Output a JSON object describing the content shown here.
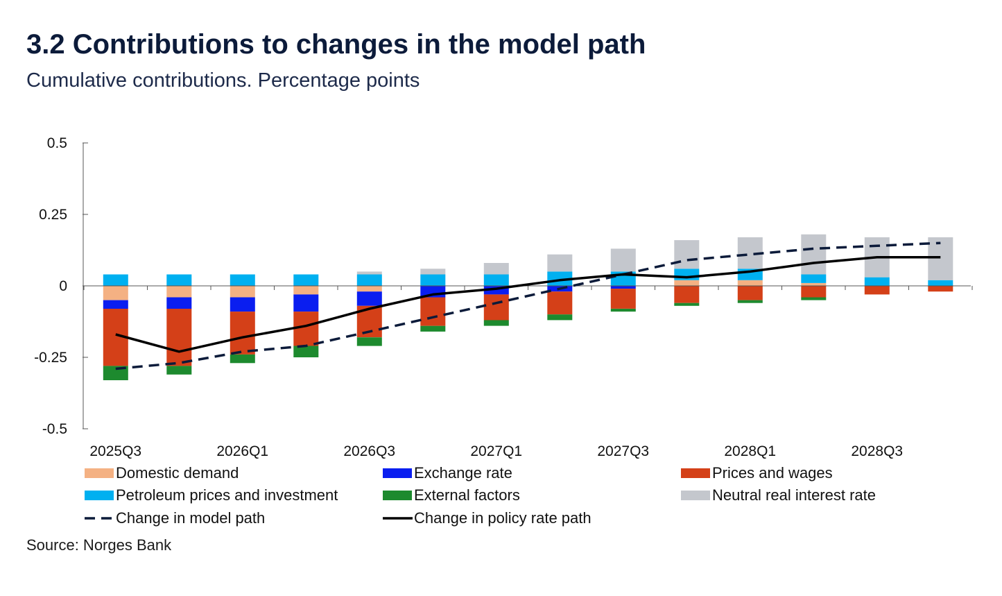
{
  "header": {
    "title": "3.2 Contributions to changes in the model path",
    "subtitle": "Cumulative contributions. Percentage points"
  },
  "footer": {
    "source": "Source: Norges Bank"
  },
  "colors": {
    "domestic_demand": "#f4b183",
    "exchange_rate": "#0a1ef0",
    "prices_and_wages": "#d44018",
    "petroleum": "#00b0f0",
    "external_factors": "#1d8a2e",
    "neutral_rate": "#c4c7cd",
    "model_path": "#0c1b3a",
    "policy_path": "#000000"
  },
  "legend": [
    {
      "label": "Domestic demand",
      "key": "domestic_demand",
      "kind": "bar"
    },
    {
      "label": "Exchange rate",
      "key": "exchange_rate",
      "kind": "bar"
    },
    {
      "label": "Prices and wages",
      "key": "prices_and_wages",
      "kind": "bar"
    },
    {
      "label": "Petroleum prices and investment",
      "key": "petroleum",
      "kind": "bar"
    },
    {
      "label": "External factors",
      "key": "external_factors",
      "kind": "bar"
    },
    {
      "label": "Neutral real interest rate",
      "key": "neutral_rate",
      "kind": "bar"
    },
    {
      "label": "Change in model path",
      "key": "model_path",
      "kind": "dashed"
    },
    {
      "label": "Change in policy rate path",
      "key": "policy_path",
      "kind": "solid"
    }
  ],
  "chart_data": {
    "type": "bar",
    "stacked": true,
    "title": "3.2 Contributions to changes in the model path",
    "subtitle": "Cumulative contributions. Percentage points",
    "categories": [
      "2025Q3",
      "2025Q4",
      "2026Q1",
      "2026Q2",
      "2026Q3",
      "2026Q4",
      "2027Q1",
      "2027Q2",
      "2027Q3",
      "2027Q4",
      "2028Q1",
      "2028Q2",
      "2028Q3",
      "2028Q4"
    ],
    "x_tick_labels": [
      "2025Q3",
      "2026Q1",
      "2026Q3",
      "2027Q1",
      "2027Q3",
      "2028Q1",
      "2028Q3"
    ],
    "ylim": [
      -0.5,
      0.5
    ],
    "y_ticks": [
      0.5,
      0.25,
      0,
      -0.25,
      -0.5
    ],
    "y_tick_labels": [
      "0.5",
      "0.25",
      "0",
      "-0.25",
      "-0.5"
    ],
    "xlabel": "",
    "ylabel": "",
    "series": [
      {
        "name": "Domestic demand",
        "key": "domestic_demand",
        "values": [
          -0.05,
          -0.04,
          -0.04,
          -0.03,
          -0.02,
          0,
          0,
          0,
          0,
          0.02,
          0.02,
          0.01,
          0,
          0
        ]
      },
      {
        "name": "Exchange rate",
        "key": "exchange_rate",
        "values": [
          -0.03,
          -0.04,
          -0.05,
          -0.06,
          -0.05,
          -0.04,
          -0.03,
          -0.02,
          -0.01,
          0,
          0,
          0,
          0,
          0
        ]
      },
      {
        "name": "Prices and wages",
        "key": "prices_and_wages",
        "values": [
          -0.2,
          -0.2,
          -0.15,
          -0.12,
          -0.11,
          -0.1,
          -0.09,
          -0.08,
          -0.07,
          -0.06,
          -0.05,
          -0.04,
          -0.03,
          -0.02
        ]
      },
      {
        "name": "Petroleum prices and investment",
        "key": "petroleum",
        "values": [
          0.04,
          0.04,
          0.04,
          0.04,
          0.04,
          0.04,
          0.04,
          0.05,
          0.05,
          0.04,
          0.04,
          0.03,
          0.03,
          0.02
        ]
      },
      {
        "name": "External factors",
        "key": "external_factors",
        "values": [
          -0.05,
          -0.03,
          -0.03,
          -0.04,
          -0.03,
          -0.02,
          -0.02,
          -0.02,
          -0.01,
          -0.01,
          -0.01,
          -0.01,
          0,
          0
        ]
      },
      {
        "name": "Neutral real interest rate",
        "key": "neutral_rate",
        "values": [
          0,
          0,
          0,
          0,
          0.01,
          0.02,
          0.04,
          0.06,
          0.08,
          0.1,
          0.11,
          0.14,
          0.14,
          0.15
        ]
      }
    ],
    "lines": [
      {
        "name": "Change in model path",
        "key": "model_path",
        "style": "dashed",
        "values": [
          -0.29,
          -0.27,
          -0.23,
          -0.21,
          -0.16,
          -0.11,
          -0.06,
          -0.01,
          0.04,
          0.09,
          0.11,
          0.13,
          0.14,
          0.15
        ]
      },
      {
        "name": "Change in policy rate path",
        "key": "policy_path",
        "style": "solid",
        "values": [
          -0.17,
          -0.23,
          -0.18,
          -0.14,
          -0.08,
          -0.03,
          -0.01,
          0.02,
          0.04,
          0.03,
          0.05,
          0.08,
          0.1,
          0.1
        ]
      }
    ]
  }
}
